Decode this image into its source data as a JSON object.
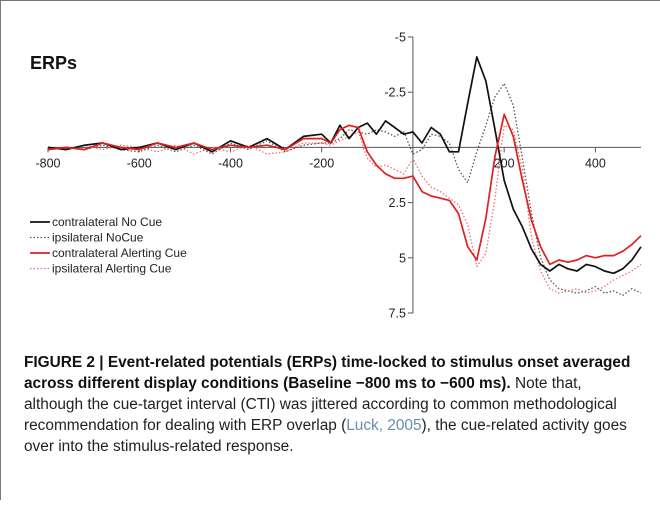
{
  "chart_data": {
    "type": "line",
    "title": "ERPs",
    "xlabel": "",
    "ylabel": "",
    "xlim": [
      -800,
      500
    ],
    "ylim": [
      -5,
      7.5
    ],
    "y_inverted": true,
    "x_ticks": [
      "-800",
      "-600",
      "-400",
      "-200",
      "200",
      "400"
    ],
    "x_tick_values": [
      -800,
      -600,
      -400,
      -200,
      200,
      400
    ],
    "y_ticks": [
      "-5",
      "-2.5",
      "2.5",
      "5",
      "7.5"
    ],
    "y_tick_values": [
      -5,
      -2.5,
      2.5,
      5,
      7.5
    ],
    "legend_position": "left",
    "series": [
      {
        "name": "contralateral No Cue",
        "color": "#111111",
        "style": "solid",
        "x": [
          -800,
          -760,
          -720,
          -680,
          -640,
          -600,
          -560,
          -520,
          -480,
          -440,
          -400,
          -360,
          -320,
          -280,
          -240,
          -200,
          -180,
          -160,
          -140,
          -120,
          -100,
          -80,
          -60,
          -40,
          -20,
          0,
          20,
          40,
          60,
          80,
          100,
          120,
          140,
          160,
          180,
          200,
          220,
          240,
          260,
          280,
          300,
          320,
          340,
          360,
          380,
          400,
          420,
          440,
          460,
          480,
          500
        ],
        "y": [
          0,
          0.1,
          -0.1,
          -0.2,
          0.1,
          0,
          -0.2,
          0.1,
          -0.2,
          0.2,
          -0.3,
          0,
          -0.4,
          0.1,
          -0.5,
          -0.6,
          -0.2,
          -1.0,
          -0.4,
          -0.9,
          -1.1,
          -0.6,
          -1.2,
          -0.9,
          -0.6,
          -0.7,
          -0.2,
          -0.9,
          -0.6,
          0.2,
          0.2,
          -2.0,
          -4.1,
          -3.0,
          -0.8,
          1.5,
          2.8,
          3.6,
          4.6,
          5.3,
          5.6,
          5.3,
          5.5,
          5.6,
          5.3,
          5.4,
          5.6,
          5.7,
          5.5,
          5.1,
          4.5
        ]
      },
      {
        "name": "ipsilateral NoCue",
        "color": "#555555",
        "style": "dotted",
        "x": [
          -800,
          -760,
          -720,
          -680,
          -640,
          -600,
          -560,
          -520,
          -480,
          -440,
          -400,
          -360,
          -320,
          -280,
          -240,
          -200,
          -180,
          -160,
          -140,
          -120,
          -100,
          -80,
          -60,
          -40,
          -20,
          0,
          20,
          40,
          60,
          80,
          100,
          120,
          140,
          160,
          180,
          200,
          220,
          240,
          260,
          280,
          300,
          320,
          340,
          360,
          380,
          400,
          420,
          440,
          460,
          480,
          500
        ],
        "y": [
          0.1,
          0,
          0.1,
          -0.1,
          0.1,
          0.2,
          -0.1,
          0.2,
          -0.1,
          0.3,
          -0.2,
          0.1,
          -0.3,
          0.2,
          -0.1,
          -0.2,
          -0.2,
          -0.4,
          -0.8,
          -0.7,
          -0.6,
          -0.8,
          -0.7,
          -0.5,
          -0.7,
          0.3,
          0.1,
          -0.6,
          -0.5,
          -0.2,
          1.0,
          1.6,
          0.2,
          -1.0,
          -2.3,
          -2.9,
          -1.9,
          0.5,
          3.0,
          5.0,
          6.0,
          6.4,
          6.5,
          6.6,
          6.5,
          6.3,
          6.6,
          6.5,
          6.7,
          6.4,
          6.6
        ]
      },
      {
        "name": "contralateral Alerting Cue",
        "color": "#e02020",
        "style": "solid",
        "x": [
          -800,
          -760,
          -720,
          -680,
          -640,
          -600,
          -560,
          -520,
          -480,
          -440,
          -400,
          -360,
          -320,
          -280,
          -240,
          -200,
          -180,
          -160,
          -140,
          -120,
          -100,
          -80,
          -60,
          -40,
          -20,
          0,
          20,
          40,
          60,
          80,
          100,
          120,
          140,
          160,
          180,
          200,
          220,
          240,
          260,
          280,
          300,
          320,
          340,
          360,
          380,
          400,
          420,
          440,
          460,
          480,
          500
        ],
        "y": [
          0.1,
          0,
          0.1,
          -0.2,
          0,
          0.1,
          -0.2,
          0,
          -0.2,
          0.1,
          -0.1,
          0,
          -0.1,
          0.1,
          -0.4,
          -0.4,
          -0.2,
          -0.8,
          -1.0,
          -0.9,
          0.2,
          0.8,
          1.2,
          1.4,
          1.4,
          1.3,
          2.0,
          2.2,
          2.3,
          2.4,
          3.0,
          4.5,
          5.1,
          3.2,
          0.4,
          -1.5,
          -0.5,
          1.5,
          3.3,
          4.5,
          5.3,
          5.1,
          5.2,
          5.1,
          4.9,
          5.0,
          4.9,
          4.9,
          4.7,
          4.4,
          4.0
        ]
      },
      {
        "name": "ipsilateral Alerting Cue",
        "color": "#f07070",
        "style": "dotted",
        "x": [
          -800,
          -760,
          -720,
          -680,
          -640,
          -600,
          -560,
          -520,
          -480,
          -440,
          -400,
          -360,
          -320,
          -280,
          -240,
          -200,
          -180,
          -160,
          -140,
          -120,
          -100,
          -80,
          -60,
          -40,
          -20,
          0,
          20,
          40,
          60,
          80,
          100,
          120,
          140,
          160,
          180,
          200,
          220,
          240,
          260,
          280,
          300,
          320,
          340,
          360,
          380,
          400,
          420,
          440,
          460,
          480,
          500
        ],
        "y": [
          0,
          0.1,
          -0.1,
          0.1,
          -0.1,
          0,
          0.2,
          -0.1,
          0.3,
          0,
          0.2,
          -0.1,
          0.3,
          0.2,
          -0.2,
          -0.2,
          -0.1,
          -0.3,
          -0.5,
          -0.7,
          0.5,
          0.9,
          0.8,
          1.0,
          1.2,
          0.5,
          1.3,
          1.8,
          2.0,
          2.3,
          2.6,
          3.5,
          5.4,
          4.8,
          2.3,
          -1.0,
          -0.8,
          1.0,
          4.1,
          5.6,
          6.4,
          6.6,
          6.5,
          6.4,
          6.6,
          6.5,
          6.3,
          6.0,
          5.8,
          5.6,
          5.3
        ]
      }
    ]
  },
  "caption": {
    "figure_label": "FIGURE 2 | Event-related potentials (ERPs) time-locked to stimulus onset averaged across different display conditions (Baseline −800 ms to −600 ms).",
    "text_before_citation": " Note that, although the cue-target interval (CTI) was jittered according to common methodological recommendation for dealing with ERP overlap (",
    "citation": "Luck, 2005",
    "text_after_citation": "), the cue-related activity goes over into the stimulus-related response."
  }
}
